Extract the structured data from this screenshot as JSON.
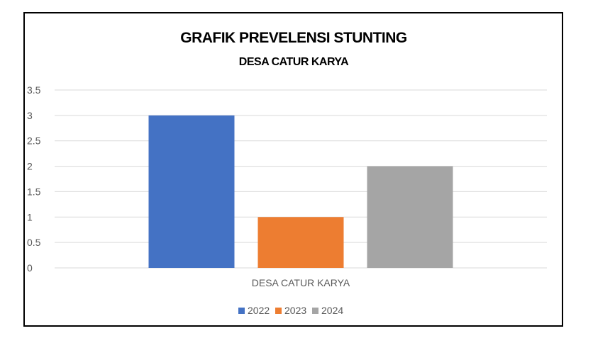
{
  "chart_data": {
    "type": "bar",
    "title": "GRAFIK PREVELENSI STUNTING",
    "subtitle": "DESA CATUR KARYA",
    "categories": [
      "DESA CATUR KARYA"
    ],
    "series": [
      {
        "name": "2022",
        "values": [
          3
        ],
        "color": "#4472C4"
      },
      {
        "name": "2023",
        "values": [
          1
        ],
        "color": "#ED7D31"
      },
      {
        "name": "2024",
        "values": [
          2
        ],
        "color": "#A5A5A5"
      }
    ],
    "ylim": [
      0,
      3.5
    ],
    "yticks": [
      "0",
      "0.5",
      "1",
      "1.5",
      "2",
      "2.5",
      "3",
      "3.5"
    ],
    "grid": true,
    "legend_position": "bottom"
  }
}
